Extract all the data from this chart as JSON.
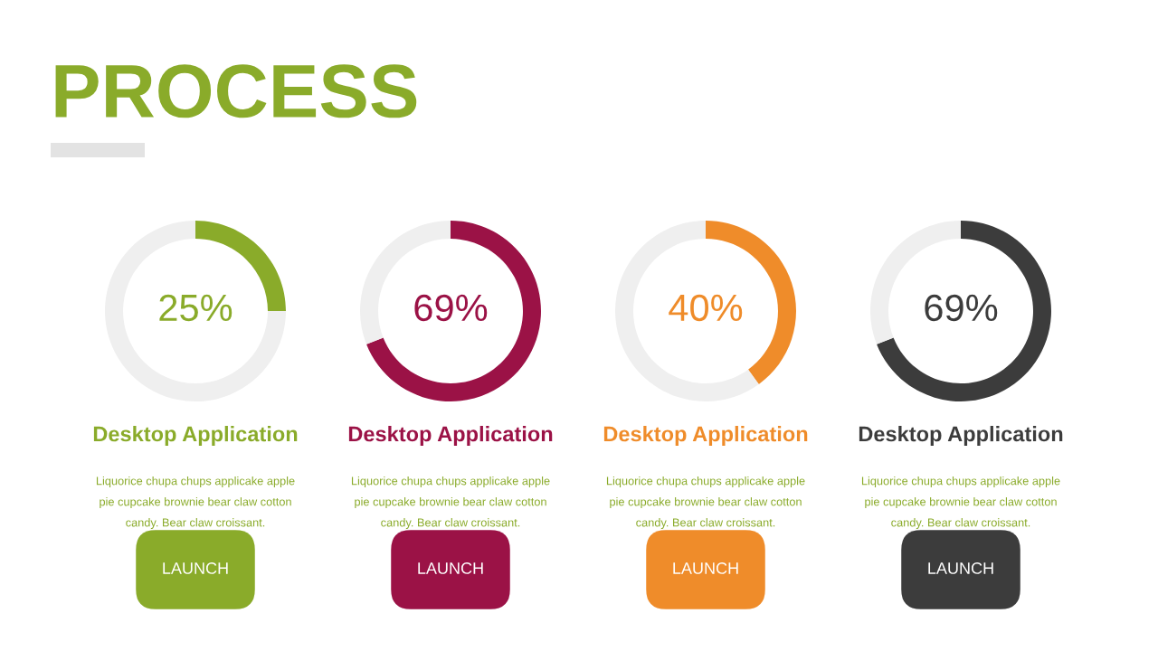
{
  "chart_data": [
    {
      "type": "other",
      "title": "PROCESS",
      "color": "#8aab2a"
    },
    {
      "type": "donut",
      "title": "Desktop Application",
      "categories": [
        null,
        null
      ],
      "values": [
        25,
        75
      ],
      "colors": [
        "#8aab2a",
        "#efefef"
      ],
      "value_labels": [
        "25%",
        null
      ],
      "annotations": [
        "Liquorice chupa chups applicake apple\npie cupcake brownie bear claw cotton\ncandy. Bear claw croissant.",
        "LAUNCH"
      ]
    },
    {
      "type": "donut",
      "title": "Desktop Application",
      "categories": [
        null,
        null
      ],
      "values": [
        69,
        31
      ],
      "colors": [
        "#9b1246",
        "#efefef"
      ],
      "value_labels": [
        "69%",
        null
      ],
      "annotations": [
        "Liquorice chupa chups applicake apple\npie cupcake brownie bear claw cotton\ncandy. Bear claw croissant.",
        "LAUNCH"
      ]
    },
    {
      "type": "donut",
      "title": "Desktop Application",
      "categories": [
        null,
        null
      ],
      "values": [
        40,
        60
      ],
      "colors": [
        "#ef8c2a",
        "#efefef"
      ],
      "value_labels": [
        "40%",
        null
      ],
      "annotations": [
        "Liquorice chupa chups applicake apple\npie cupcake brownie bear claw cotton\ncandy. Bear claw croissant.",
        "LAUNCH"
      ]
    },
    {
      "type": "donut",
      "title": "Desktop Application",
      "categories": [
        null,
        null
      ],
      "values": [
        69,
        31
      ],
      "colors": [
        "#3c3c3c",
        "#efefef"
      ],
      "value_labels": [
        "69%",
        null
      ],
      "annotations": [
        "Liquorice chupa chups applicake apple\npie cupcake brownie bear claw cotton\ncandy. Bear claw croissant.",
        "LAUNCH"
      ]
    }
  ]
}
